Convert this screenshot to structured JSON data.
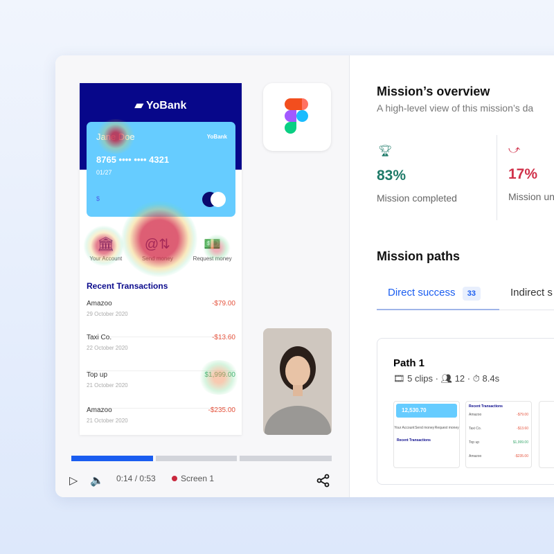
{
  "app": {
    "bank_name": "YoBank",
    "card": {
      "holder": "Jane Doe",
      "brand": "YoBank",
      "number": "8765 •••• •••• 4321",
      "expiry": "01/27",
      "currency": "$"
    },
    "actions": [
      {
        "label": "Your Account",
        "icon": "bank-icon"
      },
      {
        "label": "Send money",
        "icon": "send-money-icon"
      },
      {
        "label": "Request money",
        "icon": "request-money-icon"
      }
    ],
    "recent_title": "Recent Transactions",
    "transactions": [
      {
        "name": "Amazoo",
        "date": "29 October 2020",
        "amount": "-$79.00"
      },
      {
        "name": "Taxi Co.",
        "date": "22 October 2020",
        "amount": "-$13.60"
      },
      {
        "name": "Top up",
        "date": "21 October 2020",
        "amount": "$1,999.00"
      },
      {
        "name": "Amazoo",
        "date": "21 October 2020",
        "amount": "-$235.00"
      }
    ]
  },
  "player": {
    "progress_segments": [
      1,
      0,
      0
    ],
    "time": "0:14 / 0:53",
    "screen": "Screen 1"
  },
  "overview": {
    "title": "Mission’s overview",
    "subtitle": "A high-level view of this mission’s da",
    "stats": [
      {
        "value": "83%",
        "label": "Mission completed",
        "color": "#1e7a68"
      },
      {
        "value": "17%",
        "label": "Mission un",
        "color": "#d0314a"
      }
    ]
  },
  "paths": {
    "title": "Mission paths",
    "tabs": [
      {
        "label": "Direct success",
        "count": "33",
        "active": true
      },
      {
        "label": "Indirect s"
      }
    ],
    "card": {
      "title": "Path 1",
      "clips": "5 clips",
      "users": "12",
      "time": "8.4s",
      "thumb_balance": "12,530.70"
    }
  },
  "colors": {
    "navy": "#07078a",
    "card": "#66ccff",
    "accent": "#1a5df0"
  }
}
